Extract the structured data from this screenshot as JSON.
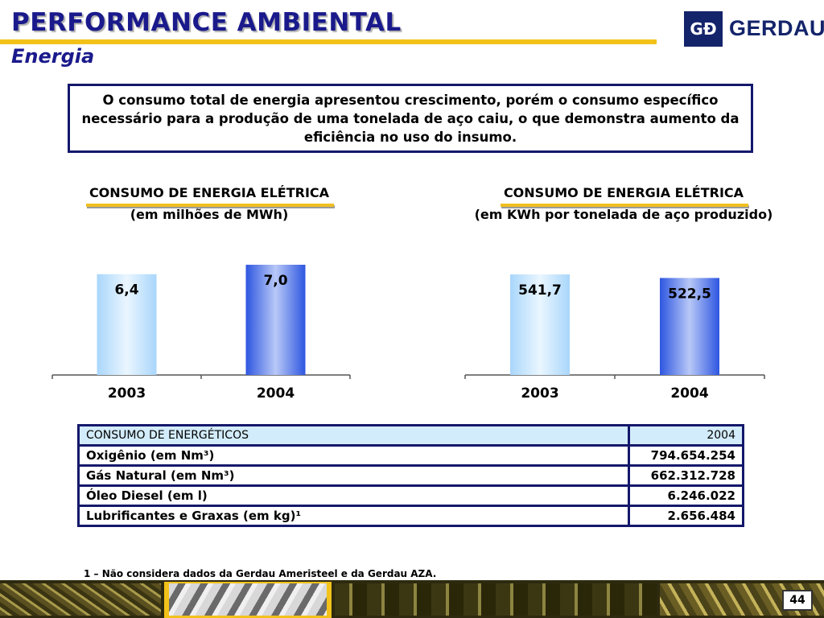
{
  "header": {
    "title": "PERFORMANCE AMBIENTAL",
    "subtitle": "Energia",
    "logo_text": "GERDAU",
    "logo_mark": "GÐ"
  },
  "note": "O consumo total de energia apresentou crescimento, porém o consumo específico necessário para a produção de uma tonelada de aço caiu, o que demonstra aumento da eficiência no uso do insumo.",
  "colors": {
    "brand": "#14186b",
    "accent": "#f2c21a",
    "bar_2003": "#b9dffb",
    "bar_2004": "#3c63e6"
  },
  "chart_data": [
    {
      "type": "bar",
      "title": "CONSUMO DE ENERGIA ELÉTRICA",
      "subtitle": "(em milhões de MWh)",
      "categories": [
        "2003",
        "2004"
      ],
      "values": [
        6.4,
        7.0
      ],
      "value_labels": [
        "6,4",
        "7,0"
      ]
    },
    {
      "type": "bar",
      "title": "CONSUMO DE ENERGIA ELÉTRICA",
      "subtitle": "(em KWh por tonelada de aço produzido)",
      "categories": [
        "2003",
        "2004"
      ],
      "values": [
        541.7,
        522.5
      ],
      "value_labels": [
        "541,7",
        "522,5"
      ]
    }
  ],
  "table": {
    "header": [
      "CONSUMO DE ENERGÉTICOS",
      "2004"
    ],
    "rows": [
      [
        "Oxigênio (em Nm³)",
        "794.654.254"
      ],
      [
        "Gás Natural (em Nm³)",
        "662.312.728"
      ],
      [
        "Óleo Diesel (em l)",
        "6.246.022"
      ],
      [
        "Lubrificantes  e Graxas (em kg)¹",
        "2.656.484"
      ]
    ]
  },
  "footnote": "1 – Não considera dados da Gerdau Ameristeel e da Gerdau AZA.",
  "page_number": "44"
}
